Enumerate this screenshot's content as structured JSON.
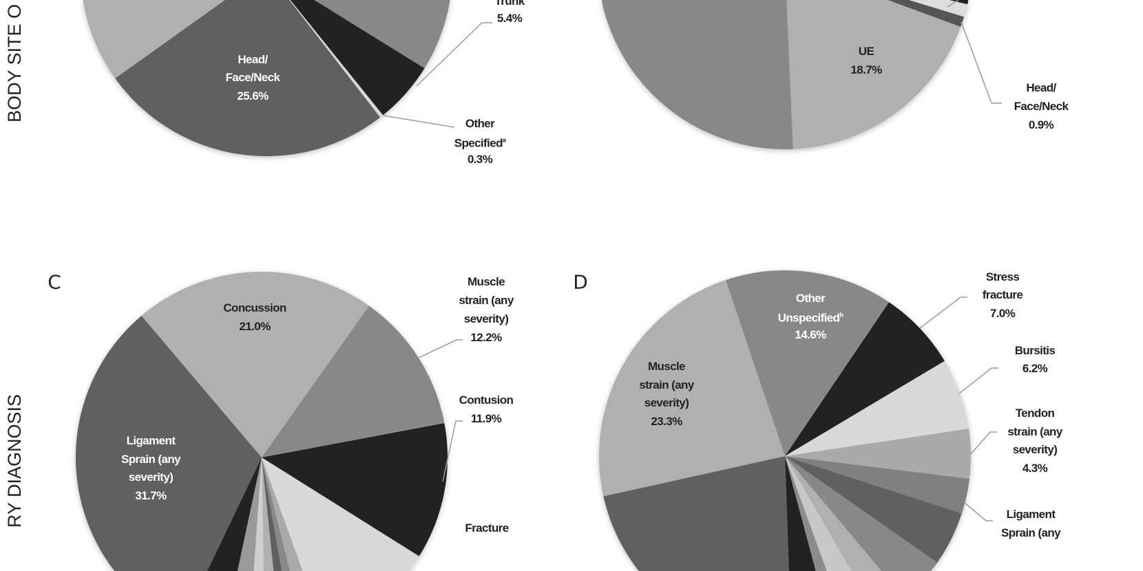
{
  "row_titles": {
    "top": "BODY SITE O",
    "bottom": "RY DIAGNOSIS"
  },
  "chart_data": [
    {
      "type": "pie",
      "panel": "",
      "slices": [
        {
          "label_lines": [
            "Trunk"
          ],
          "value": 5.4,
          "value_label": "5.4%",
          "color": "#222222"
        },
        {
          "label_lines": [
            "Other",
            "Specified"
          ],
          "footnote": "a",
          "value": 0.3,
          "value_label": "0.3%",
          "color": "#d9d9d9"
        },
        {
          "label_lines": [
            "Head/",
            "Face/Neck"
          ],
          "value": 25.6,
          "value_label": "25.6%",
          "color": "#606060"
        }
      ]
    },
    {
      "type": "pie",
      "panel": "",
      "slices": [
        {
          "label_lines": [
            "Head/",
            "Face/Neck"
          ],
          "value": 0.9,
          "value_label": "0.9%",
          "color": "#555555"
        },
        {
          "label_lines": [
            "UE"
          ],
          "value": 18.7,
          "value_label": "18.7%",
          "color": "#b0b0b0"
        }
      ]
    },
    {
      "type": "pie",
      "panel": "C",
      "slices": [
        {
          "label_lines": [
            "Concussion"
          ],
          "value": 21.0,
          "value_label": "21.0%",
          "color": "#b0b0b0"
        },
        {
          "label_lines": [
            "Muscle",
            "strain (any",
            "severity)"
          ],
          "value": 12.2,
          "value_label": "12.2%",
          "color": "#888888"
        },
        {
          "label_lines": [
            "Contusion"
          ],
          "value": 11.9,
          "value_label": "11.9%",
          "color": "#222222"
        },
        {
          "label_lines": [
            "Fracture"
          ],
          "value": null,
          "value_label": "",
          "color": "#d9d9d9"
        },
        {
          "label_lines": [
            "Ligament",
            "Sprain (any",
            "severity)"
          ],
          "value": 31.7,
          "value_label": "31.7%",
          "color": "#606060"
        }
      ]
    },
    {
      "type": "pie",
      "panel": "D",
      "slices": [
        {
          "label_lines": [
            "Other",
            "Unspecified"
          ],
          "footnote": "b",
          "value": 14.6,
          "value_label": "14.6%",
          "color": "#888888"
        },
        {
          "label_lines": [
            "Stress",
            "fracture"
          ],
          "value": 7.0,
          "value_label": "7.0%",
          "color": "#222222"
        },
        {
          "label_lines": [
            "Bursitis"
          ],
          "value": 6.2,
          "value_label": "6.2%",
          "color": "#d9d9d9"
        },
        {
          "label_lines": [
            "Tendon",
            "strain (any",
            "severity)"
          ],
          "value": 4.3,
          "value_label": "4.3%",
          "color": "#aaaaaa"
        },
        {
          "label_lines": [
            "Ligament",
            "Sprain (any"
          ],
          "value": null,
          "value_label": "",
          "color": "#808080"
        },
        {
          "label_lines": [
            "Muscle",
            "strain (any",
            "severity)"
          ],
          "value": 23.3,
          "value_label": "23.3%",
          "color": "#b0b0b0"
        }
      ]
    }
  ]
}
